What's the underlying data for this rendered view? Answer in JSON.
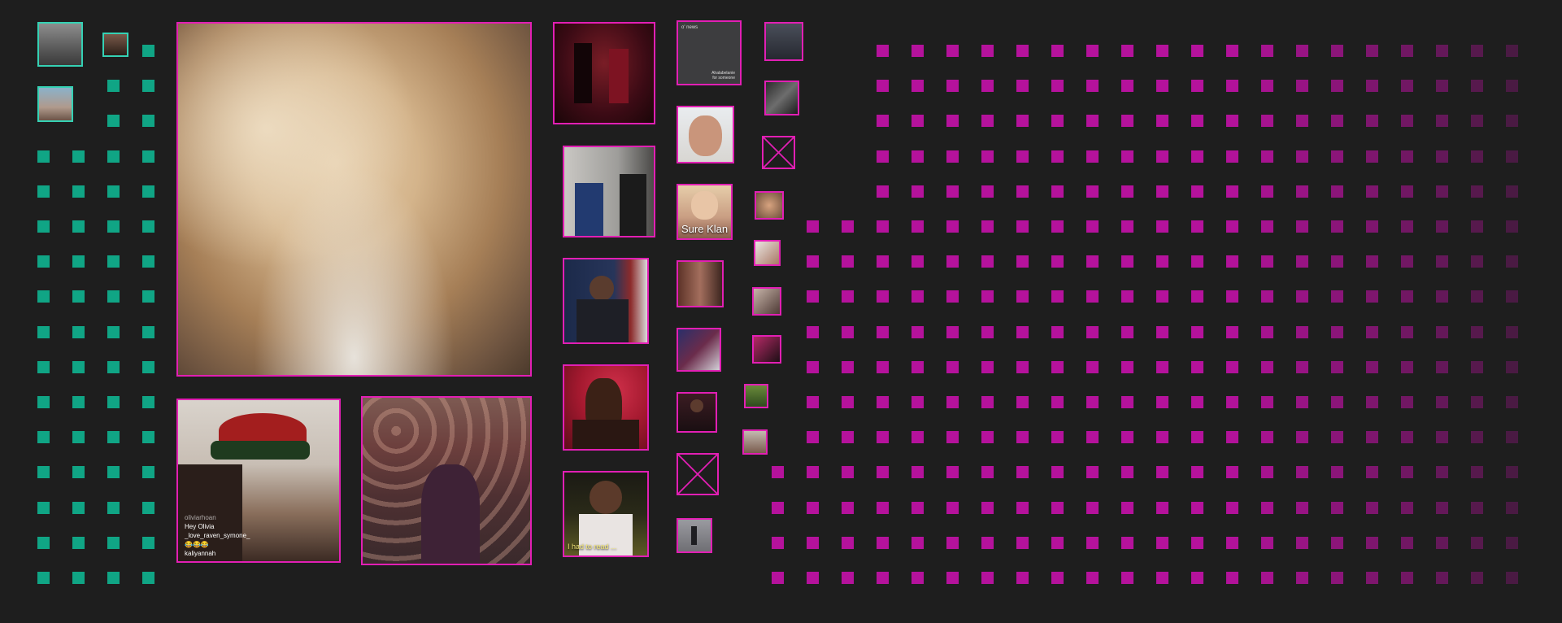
{
  "colors": {
    "background": "#1e1e1e",
    "teal": "#10a585",
    "magenta": "#b5129c",
    "tile_border": "#e21fb4",
    "tile_border_teal": "#35d1b4"
  },
  "tiles": [
    {
      "kind": "thumbnail",
      "label": "group-photo"
    },
    {
      "kind": "thumbnail",
      "label": "portrait-small"
    },
    {
      "kind": "thumbnail",
      "label": "street-photo"
    },
    {
      "kind": "gif",
      "label": "blonde-woman-closeup"
    },
    {
      "kind": "gif",
      "label": "woman-in-beanie-live-video"
    },
    {
      "kind": "gif",
      "label": "audience-clapping"
    },
    {
      "kind": "gif",
      "label": "performers-on-stage"
    },
    {
      "kind": "gif",
      "label": "men-in-hallway"
    },
    {
      "kind": "gif",
      "label": "obama-podium"
    },
    {
      "kind": "gif",
      "label": "woman-hands-on-head"
    },
    {
      "kind": "gif",
      "label": "football-player-interview"
    },
    {
      "kind": "card",
      "label": "grey-text-card"
    },
    {
      "kind": "gif",
      "label": "woman-face-closeup"
    },
    {
      "kind": "gif",
      "label": "blonde-girl-caption"
    },
    {
      "kind": "gif",
      "label": "two-people-scene"
    },
    {
      "kind": "gif",
      "label": "crowd-scene"
    },
    {
      "kind": "gif",
      "label": "man-in-suit"
    },
    {
      "kind": "broken",
      "label": "broken-image"
    },
    {
      "kind": "gif",
      "label": "person-walking"
    },
    {
      "kind": "gif",
      "label": "dark-scene-1"
    },
    {
      "kind": "gif",
      "label": "dark-scene-2"
    },
    {
      "kind": "broken",
      "label": "broken-image-small"
    },
    {
      "kind": "gif",
      "label": "thumb-a"
    },
    {
      "kind": "gif",
      "label": "thumb-b"
    },
    {
      "kind": "gif",
      "label": "thumb-c"
    },
    {
      "kind": "gif",
      "label": "thumb-d"
    },
    {
      "kind": "gif",
      "label": "thumb-e"
    },
    {
      "kind": "gif",
      "label": "thumb-f"
    }
  ],
  "captions": {
    "sure_klan": "Sure Klan",
    "football": "I had to read ...",
    "comment_1_user": "oliviarhoan",
    "comment_1_text": "Hey Olivia",
    "comment_2_user": "_love_raven_symone_",
    "comment_2_text": "😂😂😂",
    "comment_3_user": "kaliyannah"
  },
  "grey_card": {
    "title": "o' news",
    "line_1": "Ahalabelanie",
    "line_2": "for someone"
  }
}
